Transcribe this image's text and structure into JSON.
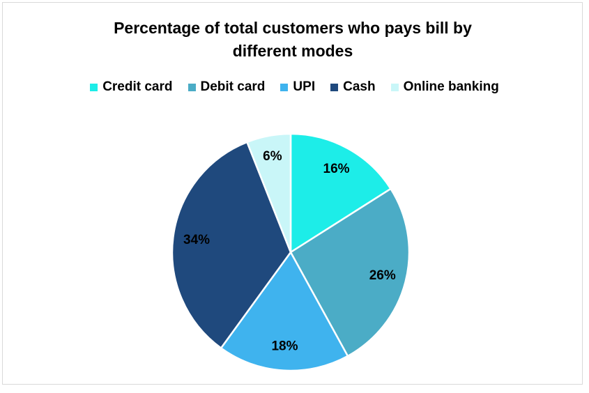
{
  "chart_data": {
    "type": "pie",
    "title": "Percentage of total customers who pays bill by different modes",
    "categories": [
      "Credit card",
      "Debit card",
      "UPI",
      "Cash",
      "Online banking"
    ],
    "values": [
      16,
      26,
      18,
      34,
      6
    ],
    "value_labels": [
      "16%",
      "26%",
      "18%",
      "34%",
      "6%"
    ],
    "colors": [
      "#1DEDE8",
      "#4BACC6",
      "#3FB3EE",
      "#1F497D",
      "#C9F6F8"
    ],
    "legend": "top"
  }
}
